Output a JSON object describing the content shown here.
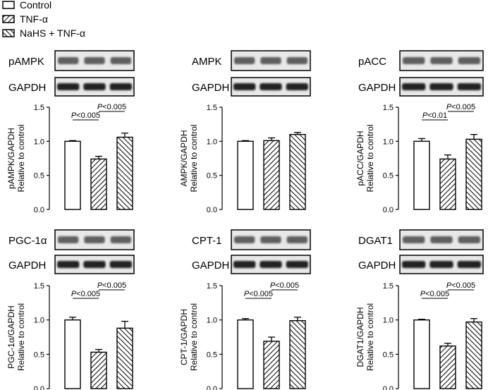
{
  "legend": [
    {
      "label": "Control",
      "pattern": "none"
    },
    {
      "label": "TNF-α",
      "pattern": "diag-right"
    },
    {
      "label": "NaHS + TNF-α",
      "pattern": "diag-left"
    }
  ],
  "blot_control_label": "GAPDH",
  "y_sub_label": "Relative to control",
  "p_letter": "P",
  "colors": {
    "bar_fill": "#ffffff",
    "stroke": "#000000",
    "blot_bg": "#e8e8e8"
  },
  "chart_data": [
    {
      "type": "bar",
      "blot_label": "pAMPK",
      "categories": [
        "Control",
        "TNF-α",
        "NaHS + TNF-α"
      ],
      "values": [
        1.0,
        0.74,
        1.06
      ],
      "errors": [
        0.01,
        0.04,
        0.06
      ],
      "ylabel": "pAMPK/GAPDH",
      "ylim": [
        0,
        1.5
      ],
      "yticks": [
        "0.0",
        "0.5",
        "1.0",
        "1.5"
      ],
      "annotations": [
        {
          "from": 0,
          "to": 1,
          "text": "<0.005"
        },
        {
          "from": 1,
          "to": 2,
          "text": "<0.005"
        }
      ]
    },
    {
      "type": "bar",
      "blot_label": "AMPK",
      "categories": [
        "Control",
        "TNF-α",
        "NaHS + TNF-α"
      ],
      "values": [
        1.0,
        1.01,
        1.1
      ],
      "errors": [
        0.01,
        0.04,
        0.03
      ],
      "ylabel": "AMPK/GAPDH",
      "ylim": [
        0,
        1.5
      ],
      "yticks": [
        "0.0",
        "0.5",
        "1.0",
        "1.5"
      ],
      "annotations": []
    },
    {
      "type": "bar",
      "blot_label": "pACC",
      "categories": [
        "Control",
        "TNF-α",
        "NaHS + TNF-α"
      ],
      "values": [
        1.0,
        0.74,
        1.03
      ],
      "errors": [
        0.04,
        0.06,
        0.07
      ],
      "ylabel": "pACC/GAPDH",
      "ylim": [
        0,
        1.5
      ],
      "yticks": [
        "0.0",
        "0.5",
        "1.0",
        "1.5"
      ],
      "annotations": [
        {
          "from": 0,
          "to": 1,
          "text": "<0.01"
        },
        {
          "from": 1,
          "to": 2,
          "text": "<0.005"
        }
      ]
    },
    {
      "type": "bar",
      "blot_label": "PGC-1α",
      "categories": [
        "Control",
        "TNF-α",
        "NaHS + TNF-α"
      ],
      "values": [
        1.0,
        0.53,
        0.88
      ],
      "errors": [
        0.04,
        0.04,
        0.1
      ],
      "ylabel": "PGC-1α/GAPDH",
      "ylim": [
        0,
        1.5
      ],
      "yticks": [
        "0.0",
        "0.5",
        "1.0",
        "1.5"
      ],
      "annotations": [
        {
          "from": 0,
          "to": 1,
          "text": "<0.005"
        },
        {
          "from": 1,
          "to": 2,
          "text": "<0.005"
        }
      ]
    },
    {
      "type": "bar",
      "blot_label": "CPT-1",
      "categories": [
        "Control",
        "TNF-α",
        "NaHS + TNF-α"
      ],
      "values": [
        1.0,
        0.69,
        0.99
      ],
      "errors": [
        0.02,
        0.06,
        0.05
      ],
      "ylabel": "CPT-1/GAPDH",
      "ylim": [
        0,
        1.5
      ],
      "yticks": [
        "0.0",
        "0.5",
        "1.0",
        "1.5"
      ],
      "annotations": [
        {
          "from": 0,
          "to": 1,
          "text": "<0.005"
        },
        {
          "from": 1,
          "to": 2,
          "text": "<0.005"
        }
      ]
    },
    {
      "type": "bar",
      "blot_label": "DGAT1",
      "categories": [
        "Control",
        "TNF-α",
        "NaHS + TNF-α"
      ],
      "values": [
        1.0,
        0.62,
        0.97
      ],
      "errors": [
        0.01,
        0.04,
        0.05
      ],
      "ylabel": "DGAT1/GAPDH",
      "ylim": [
        0,
        1.5
      ],
      "yticks": [
        "0.0",
        "0.5",
        "1.0",
        "1.5"
      ],
      "annotations": [
        {
          "from": 0,
          "to": 1,
          "text": "<0.005"
        },
        {
          "from": 1,
          "to": 2,
          "text": "<0.005"
        }
      ]
    }
  ]
}
